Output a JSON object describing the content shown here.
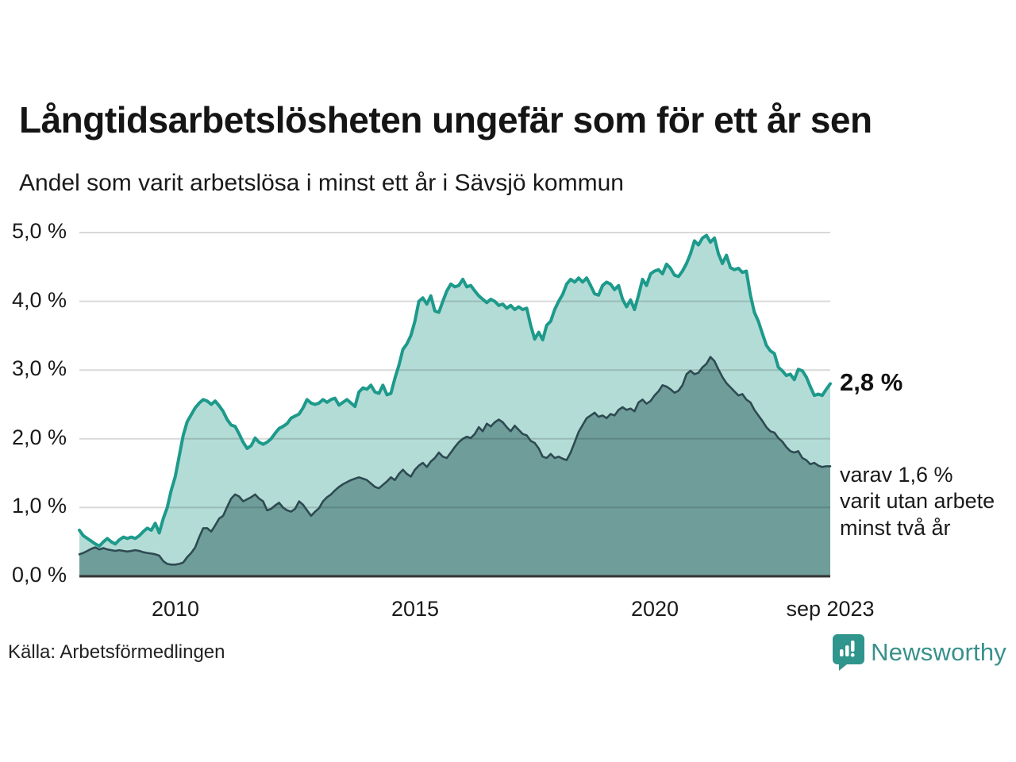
{
  "chart_data": {
    "type": "area",
    "title": "Långtidsarbetslösheten ungefär som för ett år sen",
    "subtitle": "Andel som varit arbetslösa i minst ett år i Sävsjö kommun",
    "unit": "%",
    "frequency": "monthly",
    "x_range": [
      "2008-01",
      "2023-09"
    ],
    "ylim": [
      0,
      5.0
    ],
    "grid": true,
    "legend_position": "none",
    "y_axis": {
      "labels": [
        "5,0 %",
        "4,0 %",
        "3,0 %",
        "2,0 %",
        "1,0 %",
        "0,0 %"
      ],
      "values": [
        5.0,
        4.0,
        3.0,
        2.0,
        1.0,
        0.0
      ]
    },
    "x_axis": {
      "ticks": [
        {
          "label": "2010",
          "month_index": 24
        },
        {
          "label": "2015",
          "month_index": 84
        },
        {
          "label": "2020",
          "month_index": 144
        },
        {
          "label": "sep 2023",
          "month_index": 188
        }
      ]
    },
    "series": [
      {
        "name": "Andel som varit arbetslösa i minst ett år",
        "color": "#1d9a8b",
        "fill": "#b4dcd6",
        "stroke_width": 4,
        "latest_value": 2.8,
        "values": [
          0.67,
          0.59,
          0.55,
          0.51,
          0.47,
          0.44,
          0.5,
          0.55,
          0.5,
          0.47,
          0.53,
          0.57,
          0.55,
          0.57,
          0.55,
          0.59,
          0.65,
          0.7,
          0.67,
          0.77,
          0.63,
          0.84,
          1.0,
          1.25,
          1.45,
          1.75,
          2.05,
          2.25,
          2.35,
          2.45,
          2.52,
          2.57,
          2.55,
          2.5,
          2.55,
          2.48,
          2.4,
          2.28,
          2.2,
          2.18,
          2.07,
          1.95,
          1.86,
          1.9,
          2.01,
          1.95,
          1.92,
          1.95,
          2.0,
          2.08,
          2.15,
          2.18,
          2.22,
          2.3,
          2.33,
          2.36,
          2.45,
          2.57,
          2.52,
          2.5,
          2.52,
          2.57,
          2.53,
          2.57,
          2.59,
          2.49,
          2.53,
          2.57,
          2.52,
          2.47,
          2.68,
          2.74,
          2.72,
          2.78,
          2.68,
          2.66,
          2.78,
          2.64,
          2.66,
          2.88,
          3.07,
          3.3,
          3.38,
          3.5,
          3.71,
          4.0,
          4.05,
          3.96,
          4.08,
          3.86,
          3.84,
          4.0,
          4.15,
          4.25,
          4.21,
          4.23,
          4.32,
          4.21,
          4.23,
          4.15,
          4.08,
          4.03,
          3.98,
          4.03,
          4.0,
          3.94,
          3.96,
          3.9,
          3.94,
          3.88,
          3.92,
          3.88,
          3.9,
          3.65,
          3.45,
          3.55,
          3.44,
          3.65,
          3.71,
          3.88,
          4.0,
          4.1,
          4.25,
          4.32,
          4.28,
          4.34,
          4.28,
          4.34,
          4.23,
          4.11,
          4.09,
          4.23,
          4.28,
          4.25,
          4.17,
          4.23,
          4.03,
          3.92,
          4.02,
          3.88,
          4.09,
          4.32,
          4.23,
          4.4,
          4.44,
          4.46,
          4.4,
          4.54,
          4.48,
          4.38,
          4.36,
          4.44,
          4.55,
          4.69,
          4.88,
          4.82,
          4.92,
          4.96,
          4.86,
          4.92,
          4.69,
          4.55,
          4.67,
          4.49,
          4.46,
          4.48,
          4.42,
          4.44,
          4.09,
          3.84,
          3.71,
          3.53,
          3.36,
          3.28,
          3.24,
          3.04,
          2.99,
          2.92,
          2.94,
          2.86,
          3.01,
          2.99,
          2.9,
          2.76,
          2.63,
          2.65,
          2.63,
          2.72,
          2.8
        ]
      },
      {
        "name": "varav utan arbete minst två år",
        "color": "#2e4a52",
        "fill": "#6f9e9a",
        "stroke_width": 2.6,
        "latest_value": 1.6,
        "values": [
          0.32,
          0.34,
          0.37,
          0.4,
          0.42,
          0.39,
          0.41,
          0.39,
          0.38,
          0.37,
          0.38,
          0.37,
          0.36,
          0.37,
          0.38,
          0.37,
          0.35,
          0.34,
          0.33,
          0.32,
          0.3,
          0.22,
          0.18,
          0.17,
          0.17,
          0.18,
          0.2,
          0.28,
          0.34,
          0.42,
          0.57,
          0.7,
          0.7,
          0.65,
          0.74,
          0.84,
          0.88,
          1.01,
          1.13,
          1.19,
          1.16,
          1.09,
          1.12,
          1.15,
          1.19,
          1.13,
          1.09,
          0.96,
          0.98,
          1.03,
          1.07,
          1.0,
          0.96,
          0.94,
          0.98,
          1.09,
          1.04,
          0.96,
          0.88,
          0.94,
          0.99,
          1.09,
          1.15,
          1.19,
          1.25,
          1.3,
          1.34,
          1.37,
          1.4,
          1.42,
          1.44,
          1.42,
          1.4,
          1.35,
          1.3,
          1.28,
          1.33,
          1.38,
          1.44,
          1.4,
          1.49,
          1.55,
          1.49,
          1.45,
          1.55,
          1.61,
          1.65,
          1.59,
          1.67,
          1.72,
          1.8,
          1.74,
          1.72,
          1.8,
          1.88,
          1.95,
          2.0,
          2.03,
          2.01,
          2.07,
          2.17,
          2.11,
          2.22,
          2.18,
          2.24,
          2.28,
          2.24,
          2.17,
          2.11,
          2.19,
          2.13,
          2.07,
          2.05,
          1.97,
          1.94,
          1.86,
          1.74,
          1.72,
          1.78,
          1.72,
          1.74,
          1.71,
          1.69,
          1.8,
          1.95,
          2.1,
          2.2,
          2.3,
          2.34,
          2.38,
          2.32,
          2.34,
          2.3,
          2.36,
          2.34,
          2.42,
          2.46,
          2.42,
          2.44,
          2.4,
          2.53,
          2.57,
          2.51,
          2.55,
          2.63,
          2.69,
          2.78,
          2.76,
          2.72,
          2.67,
          2.7,
          2.78,
          2.94,
          2.99,
          2.94,
          2.96,
          3.04,
          3.09,
          3.19,
          3.13,
          3.01,
          2.9,
          2.81,
          2.75,
          2.69,
          2.63,
          2.65,
          2.57,
          2.53,
          2.42,
          2.34,
          2.26,
          2.17,
          2.11,
          2.09,
          2.01,
          1.96,
          1.88,
          1.82,
          1.8,
          1.82,
          1.72,
          1.69,
          1.63,
          1.65,
          1.61,
          1.59,
          1.6,
          1.6
        ]
      }
    ],
    "annotations": {
      "latest_label": "2,8 %",
      "secondary_lines": [
        "varav 1,6 %",
        "varit utan arbete",
        "minst två år"
      ]
    },
    "colors": {
      "gridline": "rgba(0,0,0,0.15)",
      "axis": "#333333",
      "text": "#1a1a1a"
    }
  },
  "footer": {
    "source": "Källa: Arbetsförmedlingen",
    "logo_text": "Newsworthy",
    "logo_color": "#39918c"
  }
}
